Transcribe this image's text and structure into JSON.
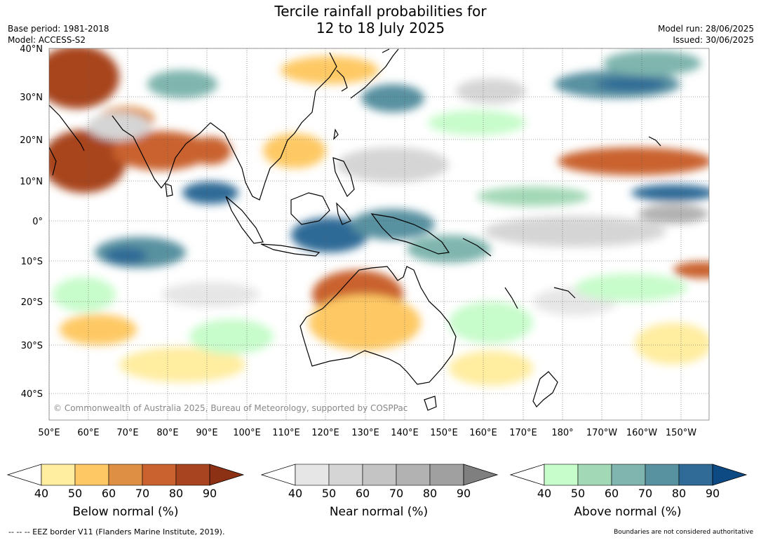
{
  "header": {
    "title_line1": "Tercile rainfall probabilities for",
    "title_line2": "12 to 18 July 2025",
    "base_period": "Base period: 1981-2018",
    "model": "Model: ACCESS-S2",
    "model_run": "Model run: 28/06/2025",
    "issued": "Issued: 30/06/2025"
  },
  "map": {
    "lat_labels": [
      "40°N",
      "30°N",
      "20°N",
      "10°N",
      "0°",
      "10°S",
      "20°S",
      "30°S",
      "40°S"
    ],
    "lon_labels": [
      "50°E",
      "60°E",
      "70°E",
      "80°E",
      "90°E",
      "100°E",
      "110°E",
      "120°E",
      "130°E",
      "140°E",
      "150°E",
      "160°E",
      "170°E",
      "180°",
      "170°W",
      "160°W",
      "150°W"
    ],
    "copyright": "© Commonwealth of Australia 2025, Bureau of Meteorology, supported by COSPPac"
  },
  "colorbars": [
    {
      "name": "below",
      "title": "Below normal (%)",
      "ticks": [
        "40",
        "50",
        "60",
        "70",
        "80",
        "90"
      ],
      "colors": [
        "#ffeda0",
        "#fec965",
        "#df8f43",
        "#c9622e",
        "#a8441f",
        "#8c3113"
      ]
    },
    {
      "name": "near",
      "title": "Near normal (%)",
      "ticks": [
        "40",
        "50",
        "60",
        "70",
        "80",
        "90"
      ],
      "colors": [
        "#e6e6e6",
        "#d5d5d5",
        "#c4c4c4",
        "#b2b2b2",
        "#a0a0a0",
        "#7f7f7f"
      ]
    },
    {
      "name": "above",
      "title": "Above normal (%)",
      "ticks": [
        "40",
        "50",
        "60",
        "70",
        "80",
        "90"
      ],
      "colors": [
        "#c7fccb",
        "#a3d8b6",
        "#7fb5ae",
        "#5891a0",
        "#2f6b96",
        "#0d4a84"
      ]
    }
  ],
  "footer": {
    "eez_note": "--  --  -- EEZ border V11 (Flanders Marine Institute, 2019).",
    "disclaimer": "Boundaries are not considered authoritative"
  }
}
